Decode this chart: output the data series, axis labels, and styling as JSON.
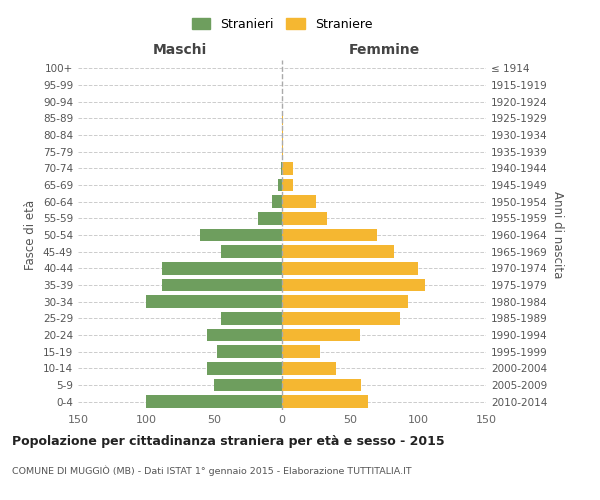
{
  "age_groups": [
    "100+",
    "95-99",
    "90-94",
    "85-89",
    "80-84",
    "75-79",
    "70-74",
    "65-69",
    "60-64",
    "55-59",
    "50-54",
    "45-49",
    "40-44",
    "35-39",
    "30-34",
    "25-29",
    "20-24",
    "15-19",
    "10-14",
    "5-9",
    "0-4"
  ],
  "birth_years": [
    "≤ 1914",
    "1915-1919",
    "1920-1924",
    "1925-1929",
    "1930-1934",
    "1935-1939",
    "1940-1944",
    "1945-1949",
    "1950-1954",
    "1955-1959",
    "1960-1964",
    "1965-1969",
    "1970-1974",
    "1975-1979",
    "1980-1984",
    "1985-1989",
    "1990-1994",
    "1995-1999",
    "2000-2004",
    "2005-2009",
    "2010-2014"
  ],
  "maschi": [
    0,
    0,
    0,
    0,
    0,
    0,
    1,
    3,
    7,
    18,
    60,
    45,
    88,
    88,
    100,
    45,
    55,
    48,
    55,
    50,
    100
  ],
  "femmine": [
    0,
    0,
    0,
    1,
    1,
    1,
    8,
    8,
    25,
    33,
    70,
    82,
    100,
    105,
    93,
    87,
    57,
    28,
    40,
    58,
    63
  ],
  "male_color": "#6e9e5e",
  "female_color": "#f5b731",
  "title": "Popolazione per cittadinanza straniera per età e sesso - 2015",
  "subtitle": "COMUNE DI MUGGIÒ (MB) - Dati ISTAT 1° gennaio 2015 - Elaborazione TUTTITALIA.IT",
  "label_maschi": "Maschi",
  "label_femmine": "Femmine",
  "ylabel_left": "Fasce di età",
  "ylabel_right": "Anni di nascita",
  "legend_male": "Stranieri",
  "legend_female": "Straniere",
  "xlim": 150,
  "background_color": "#ffffff",
  "grid_color": "#cccccc",
  "bar_height": 0.75
}
